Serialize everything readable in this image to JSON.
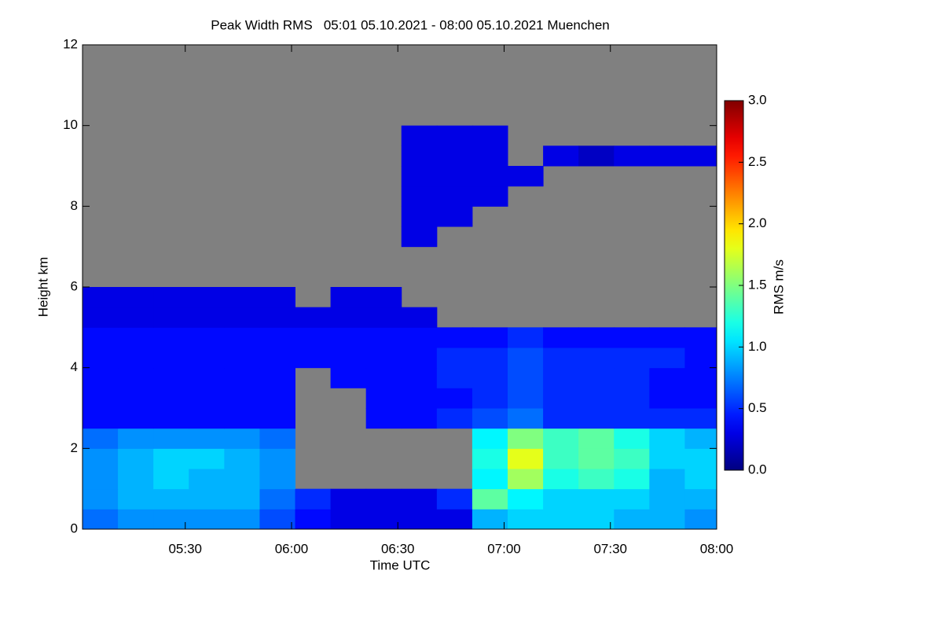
{
  "chart_data": {
    "type": "heatmap",
    "title": "Peak Width RMS   05:01 05.10.2021 - 08:00 05.10.2021 Muenchen",
    "xlabel": "Time UTC",
    "ylabel": "Height km",
    "colorbar_label": "RMS m/s",
    "xlim": [
      301,
      480
    ],
    "xticks": [
      {
        "value": 330,
        "label": "05:30"
      },
      {
        "value": 360,
        "label": "06:00"
      },
      {
        "value": 390,
        "label": "06:30"
      },
      {
        "value": 420,
        "label": "07:00"
      },
      {
        "value": 450,
        "label": "07:30"
      },
      {
        "value": 480,
        "label": "08:00"
      }
    ],
    "ylim": [
      0,
      12
    ],
    "yticks": [
      0,
      2,
      4,
      6,
      8,
      10,
      12
    ],
    "clim": [
      0,
      3
    ],
    "cticks": [
      {
        "value": 0,
        "label": "0.0"
      },
      0.5,
      {
        "value": 1,
        "label": "1.0"
      },
      1.5,
      {
        "value": 2,
        "label": "2.0"
      },
      2.5,
      {
        "value": 3,
        "label": "3.0"
      }
    ],
    "colormap": "jet",
    "missing_color": "#808080",
    "xbins": [
      301,
      311,
      321,
      331,
      341,
      351,
      361,
      371,
      381,
      391,
      401,
      411,
      421,
      431,
      441,
      451,
      461,
      471,
      480
    ],
    "ybins": [
      0,
      0.5,
      1,
      1.5,
      2,
      2.5,
      3,
      3.5,
      4,
      4.5,
      5,
      5.5,
      6,
      6.5,
      7,
      7.5,
      8,
      8.5,
      9,
      9.5,
      10,
      10.5,
      11,
      11.5,
      12
    ],
    "values": [
      [
        0.7,
        0.8,
        0.8,
        0.8,
        0.8,
        0.6,
        0.4,
        0.3,
        0.3,
        0.3,
        0.3,
        0.9,
        1.0,
        1.0,
        1.0,
        0.9,
        0.9,
        0.8
      ],
      [
        0.8,
        0.9,
        0.9,
        0.9,
        0.9,
        0.7,
        0.5,
        0.3,
        0.3,
        0.3,
        0.5,
        1.4,
        1.1,
        1.0,
        1.0,
        1.0,
        0.9,
        0.9
      ],
      [
        0.8,
        0.9,
        1.0,
        0.9,
        0.9,
        0.8,
        null,
        null,
        null,
        null,
        null,
        1.1,
        1.6,
        1.2,
        1.3,
        1.2,
        0.9,
        1.0
      ],
      [
        0.8,
        0.9,
        1.0,
        1.0,
        0.9,
        0.8,
        null,
        null,
        null,
        null,
        null,
        1.2,
        1.8,
        1.3,
        1.4,
        1.3,
        1.0,
        1.0
      ],
      [
        0.7,
        0.8,
        0.8,
        0.8,
        0.8,
        0.7,
        null,
        null,
        null,
        null,
        null,
        1.1,
        1.5,
        1.3,
        1.4,
        1.2,
        1.0,
        0.9
      ],
      [
        0.4,
        0.4,
        0.4,
        0.4,
        0.4,
        0.4,
        null,
        null,
        0.4,
        0.4,
        0.5,
        0.6,
        0.7,
        0.5,
        0.5,
        0.5,
        0.5,
        0.5
      ],
      [
        0.4,
        0.4,
        0.4,
        0.4,
        0.4,
        0.4,
        null,
        null,
        0.4,
        0.4,
        0.4,
        0.5,
        0.6,
        0.5,
        0.5,
        0.5,
        0.4,
        0.4
      ],
      [
        0.4,
        0.4,
        0.4,
        0.4,
        0.4,
        0.4,
        null,
        0.4,
        0.4,
        0.4,
        0.5,
        0.5,
        0.6,
        0.5,
        0.5,
        0.5,
        0.4,
        0.4
      ],
      [
        0.4,
        0.4,
        0.4,
        0.4,
        0.4,
        0.4,
        0.4,
        0.4,
        0.4,
        0.4,
        0.5,
        0.5,
        0.6,
        0.5,
        0.5,
        0.5,
        0.5,
        0.4
      ],
      [
        0.4,
        0.4,
        0.4,
        0.4,
        0.4,
        0.4,
        0.4,
        0.4,
        0.4,
        0.4,
        0.4,
        0.4,
        0.5,
        0.4,
        0.4,
        0.4,
        0.4,
        0.4
      ],
      [
        0.3,
        0.3,
        0.3,
        0.3,
        0.3,
        0.3,
        0.3,
        0.3,
        0.3,
        0.3,
        null,
        null,
        null,
        null,
        null,
        null,
        null,
        null
      ],
      [
        0.3,
        0.3,
        0.3,
        0.3,
        0.3,
        0.3,
        null,
        0.3,
        0.3,
        null,
        null,
        null,
        null,
        null,
        null,
        null,
        null,
        null
      ],
      [
        null,
        null,
        null,
        null,
        null,
        null,
        null,
        null,
        null,
        null,
        null,
        null,
        null,
        null,
        null,
        null,
        null,
        null
      ],
      [
        null,
        null,
        null,
        null,
        null,
        null,
        null,
        null,
        null,
        null,
        null,
        null,
        null,
        null,
        null,
        null,
        null,
        null
      ],
      [
        null,
        null,
        null,
        null,
        null,
        null,
        null,
        null,
        null,
        0.3,
        null,
        null,
        null,
        null,
        null,
        null,
        null,
        null
      ],
      [
        null,
        null,
        null,
        null,
        null,
        null,
        null,
        null,
        null,
        0.3,
        0.3,
        null,
        null,
        null,
        null,
        null,
        null,
        null
      ],
      [
        null,
        null,
        null,
        null,
        null,
        null,
        null,
        null,
        null,
        0.3,
        0.3,
        0.3,
        null,
        null,
        null,
        null,
        null,
        null
      ],
      [
        null,
        null,
        null,
        null,
        null,
        null,
        null,
        null,
        null,
        0.3,
        0.3,
        0.3,
        0.3,
        null,
        null,
        null,
        null,
        null
      ],
      [
        null,
        null,
        null,
        null,
        null,
        null,
        null,
        null,
        null,
        0.3,
        0.3,
        0.3,
        null,
        0.3,
        0.2,
        0.3,
        0.3,
        0.3
      ],
      [
        null,
        null,
        null,
        null,
        null,
        null,
        null,
        null,
        null,
        0.3,
        0.3,
        0.3,
        null,
        null,
        null,
        null,
        null,
        null
      ],
      [
        null,
        null,
        null,
        null,
        null,
        null,
        null,
        null,
        null,
        null,
        null,
        null,
        null,
        null,
        null,
        null,
        null,
        null
      ],
      [
        null,
        null,
        null,
        null,
        null,
        null,
        null,
        null,
        null,
        null,
        null,
        null,
        null,
        null,
        null,
        null,
        null,
        null
      ],
      [
        null,
        null,
        null,
        null,
        null,
        null,
        null,
        null,
        null,
        null,
        null,
        null,
        null,
        null,
        null,
        null,
        null,
        null
      ],
      [
        null,
        null,
        null,
        null,
        null,
        null,
        null,
        null,
        null,
        null,
        null,
        null,
        null,
        null,
        null,
        null,
        null,
        null
      ]
    ]
  }
}
